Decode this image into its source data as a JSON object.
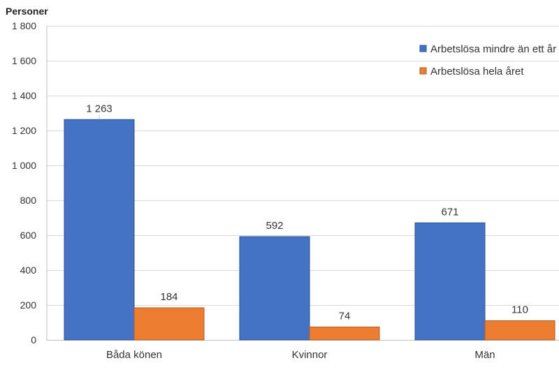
{
  "chart_data": {
    "type": "bar",
    "ylabel": "Personer",
    "ylim": [
      0,
      1800
    ],
    "yticks": [
      0,
      200,
      400,
      600,
      800,
      1000,
      1200,
      1400,
      1600,
      1800
    ],
    "ytick_labels": [
      "0",
      "200",
      "400",
      "600",
      "800",
      "1 000",
      "1 200",
      "1 400",
      "1 600",
      "1 800"
    ],
    "categories": [
      "Båda könen",
      "Kvinnor",
      "Män"
    ],
    "series": [
      {
        "name": "Arbetslösa mindre än ett år",
        "color": "#4472C4",
        "values": [
          1263,
          592,
          671
        ],
        "labels": [
          "1 263",
          "592",
          "671"
        ]
      },
      {
        "name": "Arbetslösa hela året",
        "color": "#ED7D31",
        "values": [
          184,
          74,
          110
        ],
        "labels": [
          "184",
          "74",
          "110"
        ]
      }
    ],
    "grid": true,
    "legend_position": "top-right"
  }
}
